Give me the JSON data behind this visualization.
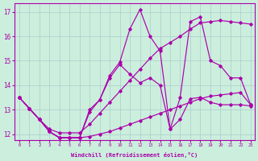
{
  "xlabel": "Windchill (Refroidissement éolien,°C)",
  "xlim_min": -0.5,
  "xlim_max": 23.4,
  "ylim_min": 11.75,
  "ylim_max": 17.35,
  "xticks": [
    0,
    1,
    2,
    3,
    4,
    5,
    6,
    7,
    8,
    9,
    10,
    11,
    12,
    13,
    14,
    15,
    16,
    17,
    18,
    19,
    20,
    21,
    22,
    23
  ],
  "yticks": [
    12,
    13,
    14,
    15,
    16,
    17
  ],
  "background_color": "#cceedd",
  "line_color": "#aa00aa",
  "grid_color": "#aacccc",
  "line1_x": [
    0,
    1,
    2,
    3,
    4,
    5,
    6,
    7,
    8,
    9,
    10,
    11,
    12,
    13,
    14,
    15,
    16,
    17,
    18,
    19,
    20,
    21,
    22,
    23
  ],
  "line1_y": [
    13.5,
    13.05,
    12.6,
    12.1,
    11.85,
    11.85,
    11.85,
    11.9,
    12.0,
    12.1,
    12.25,
    12.4,
    12.55,
    12.7,
    12.85,
    13.0,
    13.15,
    13.3,
    13.45,
    13.55,
    13.6,
    13.65,
    13.7,
    13.2
  ],
  "line2_x": [
    0,
    1,
    2,
    3,
    4,
    5,
    6,
    7,
    8,
    9,
    10,
    11,
    12,
    13,
    14,
    15,
    16,
    17,
    18,
    19,
    20,
    21,
    22,
    23
  ],
  "line2_y": [
    13.5,
    13.05,
    12.6,
    12.1,
    11.85,
    11.85,
    11.85,
    13.0,
    13.4,
    14.3,
    14.85,
    14.45,
    14.1,
    14.3,
    14.0,
    12.2,
    12.6,
    13.45,
    13.5,
    13.3,
    13.2,
    13.2,
    13.2,
    13.15
  ],
  "line3_x": [
    0,
    1,
    2,
    3,
    4,
    5,
    6,
    7,
    8,
    9,
    10,
    11,
    12,
    13,
    14,
    15,
    16,
    17,
    18,
    19,
    20,
    21,
    22,
    23
  ],
  "line3_y": [
    13.5,
    13.05,
    12.6,
    12.1,
    11.85,
    11.85,
    11.85,
    12.9,
    13.4,
    14.4,
    14.95,
    16.3,
    17.1,
    16.0,
    15.4,
    12.2,
    13.5,
    16.6,
    16.8,
    15.0,
    14.8,
    14.3,
    14.3,
    13.2
  ],
  "line4_x": [
    0,
    1,
    2,
    3,
    4,
    5,
    6,
    7,
    8,
    9,
    10,
    11,
    12,
    13,
    14,
    15,
    16,
    17,
    18,
    19,
    20,
    21,
    22,
    23
  ],
  "line4_y": [
    13.5,
    13.05,
    12.6,
    12.2,
    12.05,
    12.05,
    12.05,
    12.4,
    12.85,
    13.3,
    13.75,
    14.2,
    14.65,
    15.1,
    15.5,
    15.75,
    16.0,
    16.3,
    16.55,
    16.6,
    16.65,
    16.6,
    16.55,
    16.5
  ]
}
